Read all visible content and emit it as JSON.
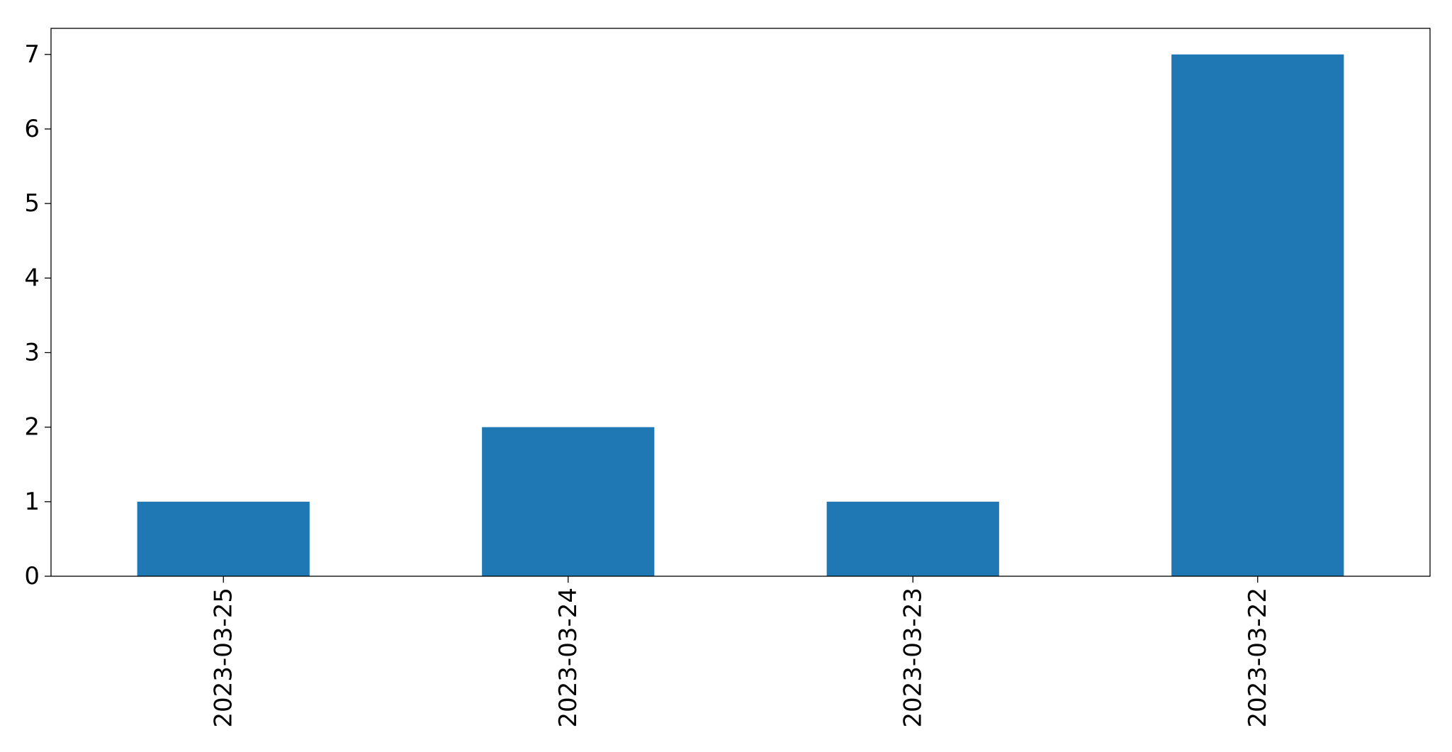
{
  "chart_data": {
    "type": "bar",
    "categories": [
      "2023-03-25",
      "2023-03-24",
      "2023-03-23",
      "2023-03-22"
    ],
    "values": [
      1,
      2,
      1,
      7
    ],
    "title": "",
    "xlabel": "",
    "ylabel": "",
    "ylim": [
      0,
      7.35
    ],
    "yticks": [
      0,
      1,
      2,
      3,
      4,
      5,
      6,
      7
    ],
    "x_tick_rotation_deg": 90,
    "grid": false,
    "legend": "none",
    "bar_color": "#1f77b4",
    "axis_color": "#000000"
  }
}
